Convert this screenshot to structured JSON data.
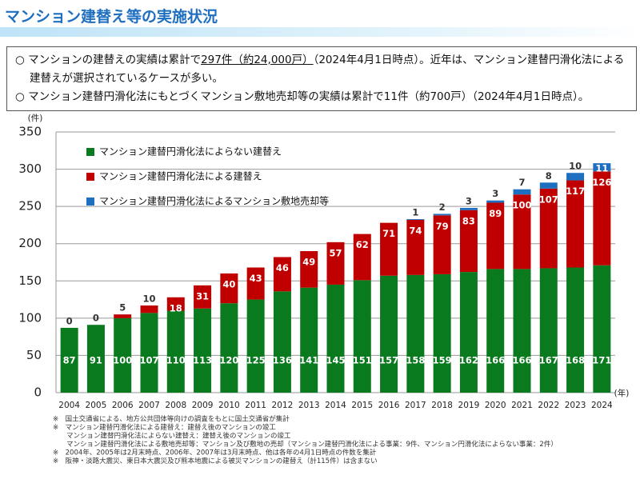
{
  "header": {
    "title": "マンション建替え等の実施状況"
  },
  "summary": {
    "line1": {
      "before": "マンションの建替えの実績は累計で",
      "underlined": "297件（約24,000戸）",
      "after": "（2024年4月1日時点）。近年は、マンション建替円滑化法による建替えが選択されているケースが多い。"
    },
    "line2": "マンション建替円滑化法にもとづくマンション敷地売却等の実績は累計で11件（約700戸）（2024年4月1日時点）。",
    "bullet": "○"
  },
  "chart_data": {
    "type": "stacked-bar",
    "y_unit": "(件)",
    "x_unit": "(年)",
    "categories": [
      "2004",
      "2005",
      "2006",
      "2007",
      "2008",
      "2009",
      "2010",
      "2011",
      "2012",
      "2013",
      "2014",
      "2015",
      "2016",
      "2017",
      "2018",
      "2019",
      "2020",
      "2021",
      "2022",
      "2023",
      "2024"
    ],
    "series": [
      {
        "name": "マンション建替円滑化法によらない建替え",
        "color": "#0a7a1f",
        "values": [
          87,
          91,
          100,
          107,
          110,
          113,
          120,
          125,
          136,
          141,
          145,
          151,
          157,
          158,
          159,
          162,
          166,
          166,
          167,
          168,
          171
        ]
      },
      {
        "name": "マンション建替円滑化法による建替え",
        "color": "#c00000",
        "values": [
          0,
          0,
          5,
          10,
          18,
          31,
          40,
          43,
          46,
          49,
          57,
          62,
          71,
          74,
          79,
          83,
          89,
          100,
          107,
          117,
          126
        ]
      },
      {
        "name": "マンション建替円滑化法によるマンション敷地売却等",
        "color": "#1f6fc0",
        "values": [
          null,
          null,
          null,
          null,
          null,
          null,
          null,
          null,
          null,
          null,
          null,
          null,
          null,
          1,
          2,
          3,
          3,
          7,
          8,
          10,
          11
        ]
      }
    ],
    "ylim": [
      0,
      350
    ],
    "yticks": [
      0,
      50,
      100,
      150,
      200,
      250,
      300,
      350
    ],
    "grid": true
  },
  "notes": [
    "※　国土交通省による、地方公共団体等向けの調査をもとに国土交通省が集計",
    "※　マンション建替円滑化法による建替え：建替え後のマンションの竣工",
    "マンション建替円滑化法によらない建替え：建替え後のマンションの竣工",
    "マンション建替円滑化法による敷地売却等：マンション及び敷地の売却（マンション建替円滑化法による事業：9件、マンション円滑化法によらない事業：2件）",
    "※　2004年、2005年は2月末時点、2006年、2007年は3月末時点、他は各年の4月1日時点の件数を集計",
    "※　阪神・淡路大震災、東日本大震災及び熊本地震による被災マンションの建替え（計115件）は含まない"
  ]
}
